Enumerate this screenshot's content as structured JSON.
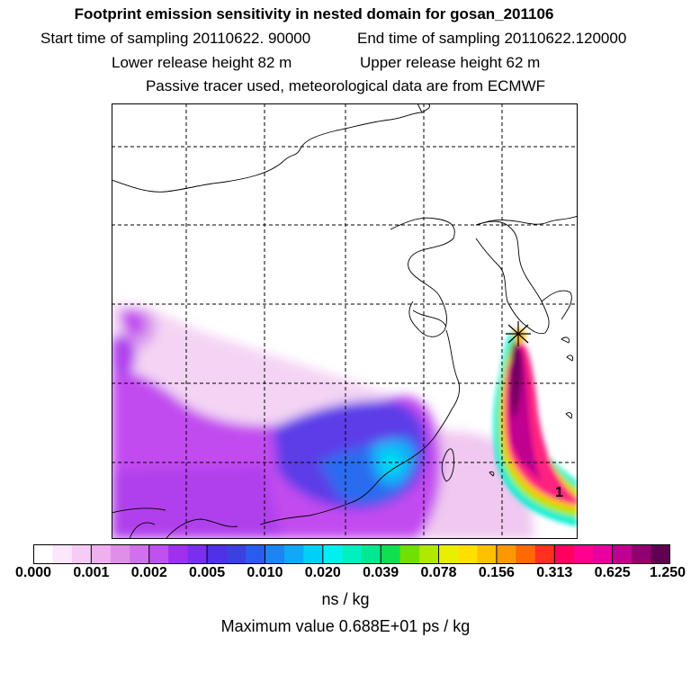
{
  "header": {
    "title": "Footprint emission sensitivity in nested domain for gosan_201106",
    "start_label": "Start time of sampling 20110622. 90000",
    "end_label": "End time of sampling 20110622.120000",
    "lower_label": "Lower release height   82 m",
    "upper_label": "Upper release height   62 m",
    "info": "Passive tracer used, meteorological data are from ECMWF"
  },
  "map": {
    "receptor_label": "1",
    "grid": "dashed",
    "frame_color": "#000000"
  },
  "colorbar": {
    "colors": [
      "#ffffff",
      "#fbe6fb",
      "#f6ccf6",
      "#f0b0f0",
      "#e08fe8",
      "#d070ec",
      "#c050f0",
      "#a030f0",
      "#7a2ef0",
      "#5030e8",
      "#3c40e0",
      "#2a5cf0",
      "#1c84f4",
      "#10a8f8",
      "#00d0f8",
      "#00f0f0",
      "#00f0c0",
      "#00e890",
      "#10e050",
      "#70e000",
      "#b0e800",
      "#e8f000",
      "#ffe000",
      "#ffc000",
      "#ff9800",
      "#ff6a00",
      "#ff3020",
      "#ff0060",
      "#ff0090",
      "#e800a0",
      "#c00090",
      "#900070",
      "#600050"
    ],
    "ticks": [
      "0.000",
      "0.001",
      "0.002",
      "0.005",
      "0.010",
      "0.020",
      "0.039",
      "0.078",
      "0.156",
      "0.313",
      "0.625",
      "1.250"
    ],
    "units": "ns / kg",
    "maximum": "Maximum value  0.688E+01 ps / kg"
  }
}
